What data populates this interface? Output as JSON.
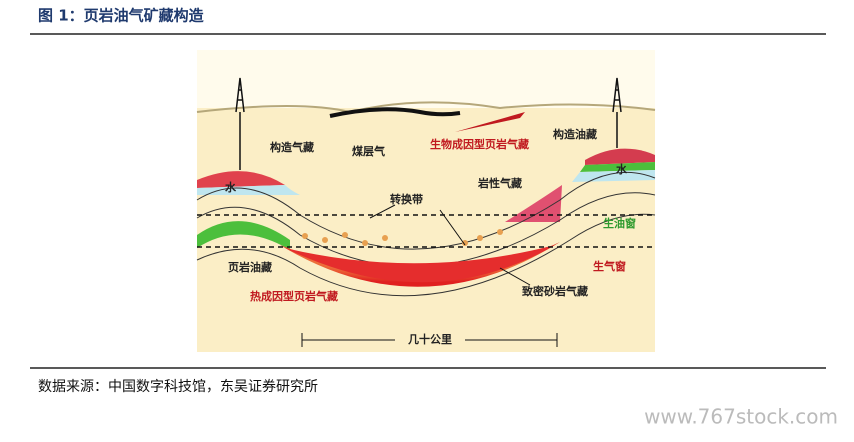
{
  "header": {
    "title": "图 1：页岩油气矿藏构造"
  },
  "diagram": {
    "labels": [
      "构造气藏",
      "煤层气",
      "生物成因型页岩气藏",
      "构造油藏",
      "水",
      "水",
      "转换带",
      "岩性气藏",
      "生油窗",
      "页岩油藏",
      "生气窗",
      "热成因型页岩气藏",
      "致密砂岩气藏"
    ],
    "scale": "几十公里"
  },
  "source": "数据来源：中国数字科技馆，东吴证券研究所",
  "watermark": "www.767stock.com"
}
